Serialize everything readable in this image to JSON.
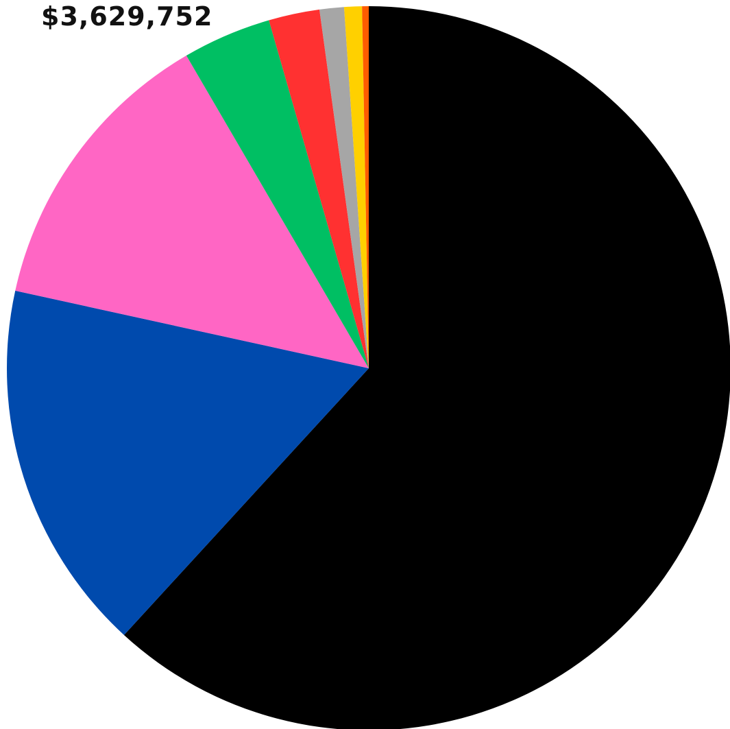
{
  "chart_data": {
    "type": "pie",
    "title": "$3,629,752",
    "slices": [
      {
        "value": 62.5,
        "color": "#000000"
      },
      {
        "value": 16.8,
        "color": "#004AAD"
      },
      {
        "value": 13.3,
        "color": "#FF66C4"
      },
      {
        "value": 4.0,
        "color": "#00BF63"
      },
      {
        "value": 2.3,
        "color": "#FF3131"
      },
      {
        "value": 1.1,
        "color": "#A6A6A6"
      },
      {
        "value": 0.8,
        "color": "#FFD000"
      },
      {
        "value": 0.3,
        "color": "#FF5C00"
      }
    ],
    "start": "top",
    "direction": "clockwise"
  }
}
